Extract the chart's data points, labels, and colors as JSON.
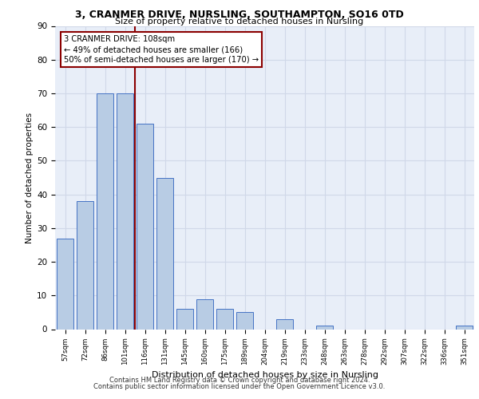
{
  "title1": "3, CRANMER DRIVE, NURSLING, SOUTHAMPTON, SO16 0TD",
  "title2": "Size of property relative to detached houses in Nursling",
  "xlabel": "Distribution of detached houses by size in Nursling",
  "ylabel": "Number of detached properties",
  "categories": [
    "57sqm",
    "72sqm",
    "86sqm",
    "101sqm",
    "116sqm",
    "131sqm",
    "145sqm",
    "160sqm",
    "175sqm",
    "189sqm",
    "204sqm",
    "219sqm",
    "233sqm",
    "248sqm",
    "263sqm",
    "278sqm",
    "292sqm",
    "307sqm",
    "322sqm",
    "336sqm",
    "351sqm"
  ],
  "values": [
    27,
    38,
    70,
    70,
    61,
    45,
    6,
    9,
    6,
    5,
    0,
    3,
    0,
    1,
    0,
    0,
    0,
    0,
    0,
    0,
    1
  ],
  "bar_color": "#b8cce4",
  "bar_edge_color": "#4472c4",
  "vline_x": 3.5,
  "vline_color": "#8b0000",
  "annotation_text": "3 CRANMER DRIVE: 108sqm\n← 49% of detached houses are smaller (166)\n50% of semi-detached houses are larger (170) →",
  "annotation_box_color": "#ffffff",
  "annotation_box_edge_color": "#8b0000",
  "ylim": [
    0,
    90
  ],
  "yticks": [
    0,
    10,
    20,
    30,
    40,
    50,
    60,
    70,
    80,
    90
  ],
  "grid_color": "#d0d8e8",
  "bg_color": "#e8eef8",
  "footer1": "Contains HM Land Registry data © Crown copyright and database right 2024.",
  "footer2": "Contains public sector information licensed under the Open Government Licence v3.0."
}
